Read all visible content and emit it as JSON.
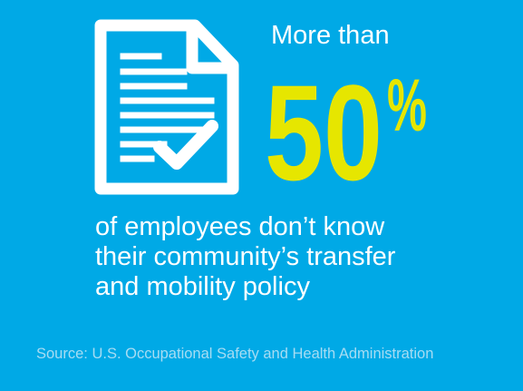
{
  "colors": {
    "background": "#00a9e6",
    "text": "#ffffff",
    "highlight": "#e6e600",
    "source_text": "#a7dcf3"
  },
  "icon": {
    "name": "document-checkmark-icon"
  },
  "headline": {
    "intro": "More than",
    "number": "50",
    "unit": "%"
  },
  "body": {
    "lines": [
      "of employees don’t know",
      "their community’s transfer",
      "and mobility policy"
    ]
  },
  "footer": {
    "source": "Source: U.S. Occupational Safety and Health Administration"
  }
}
